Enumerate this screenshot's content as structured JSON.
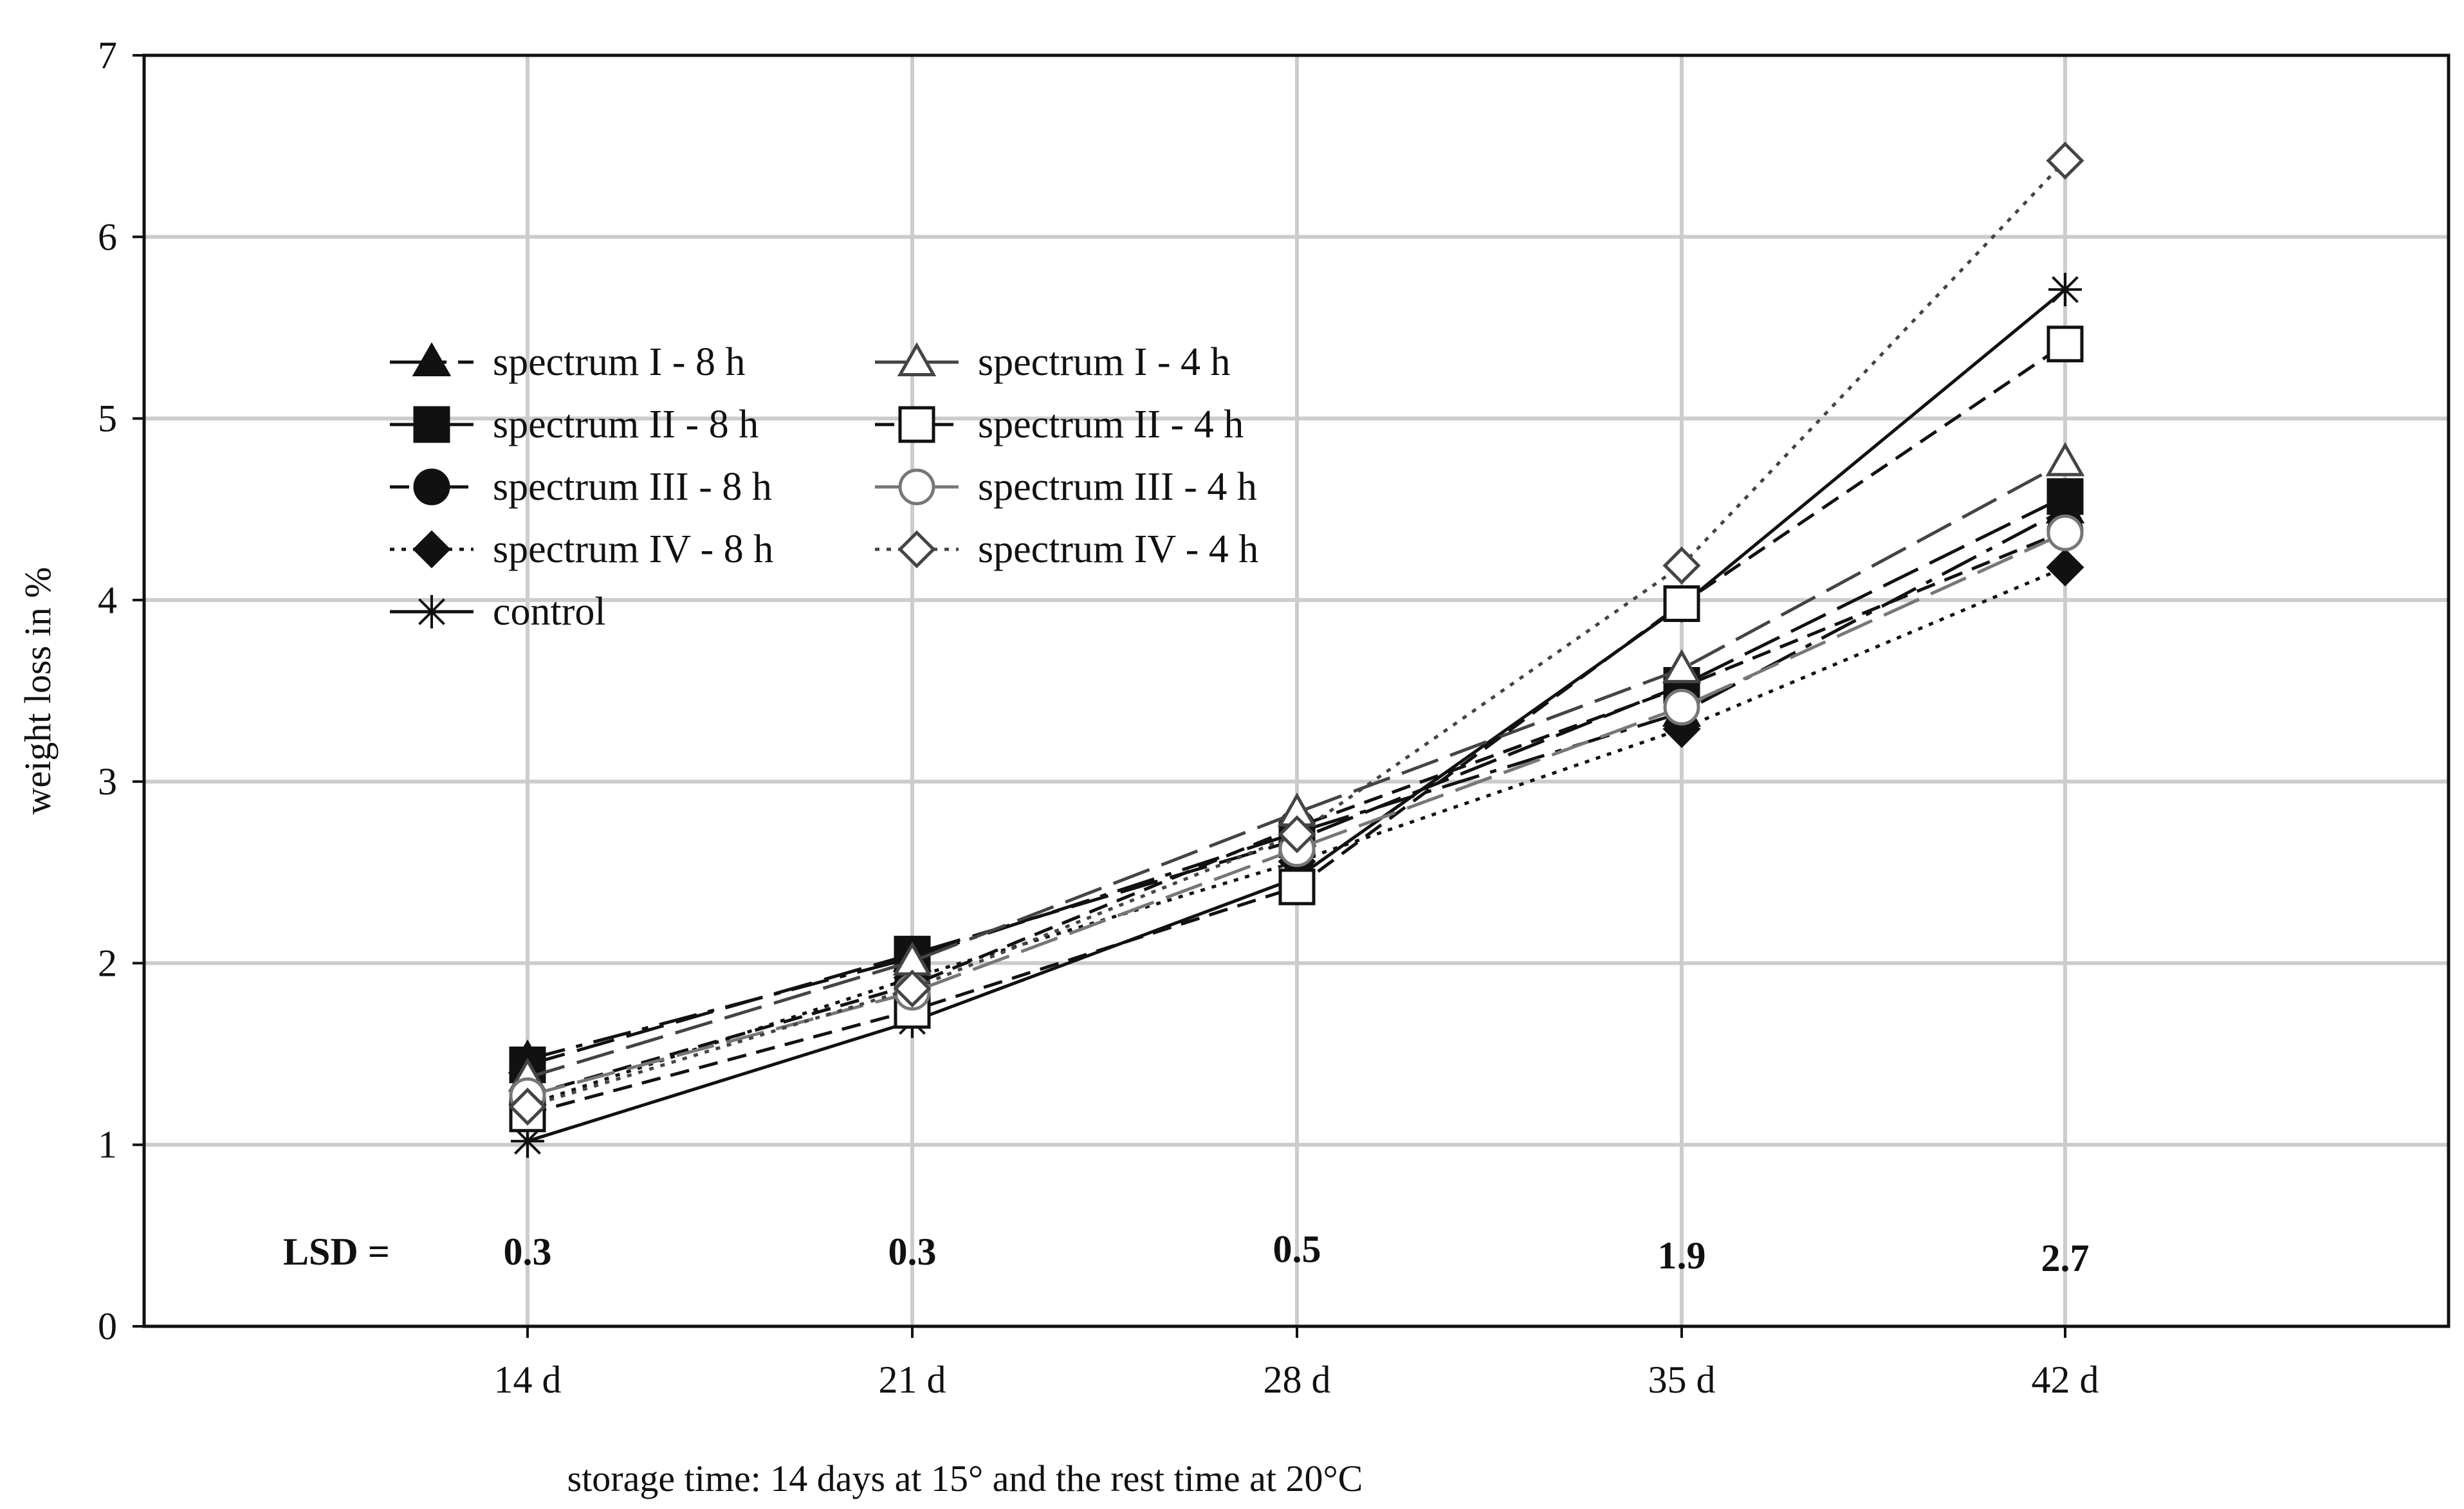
{
  "chart_data": {
    "type": "line",
    "title": "",
    "xlabel": "storage time: 14 days at 15° and the rest time at 20°C",
    "ylabel": "weight loss in %",
    "categories": [
      "14 d",
      "21 d",
      "28 d",
      "35 d",
      "42 d"
    ],
    "ylim": [
      0,
      7
    ],
    "yticks": [
      0,
      1,
      2,
      3,
      4,
      5,
      6,
      7
    ],
    "grid": true,
    "legend_position": "top-left",
    "series": [
      {
        "name": "spectrum I - 8 h",
        "values": [
          1.47,
          2.03,
          2.72,
          3.38,
          4.5
        ],
        "marker": "triangle-filled",
        "dash": "long-dash-dot",
        "color": "#111111"
      },
      {
        "name": "spectrum II - 8 h",
        "values": [
          1.44,
          2.05,
          2.68,
          3.53,
          4.57
        ],
        "marker": "square-filled",
        "dash": "long-dash",
        "color": "#111111"
      },
      {
        "name": "spectrum III - 8 h",
        "values": [
          1.27,
          1.88,
          2.75,
          3.52,
          4.38
        ],
        "marker": "circle-filled",
        "dash": "dash",
        "color": "#111111"
      },
      {
        "name": "spectrum IV - 8 h",
        "values": [
          1.22,
          1.92,
          2.56,
          3.29,
          4.18
        ],
        "marker": "diamond-filled",
        "dash": "dot",
        "color": "#111111"
      },
      {
        "name": "control",
        "values": [
          1.02,
          1.68,
          2.47,
          3.97,
          5.71
        ],
        "marker": "asterisk",
        "dash": "solid",
        "color": "#111111"
      },
      {
        "name": "spectrum I - 4 h",
        "values": [
          1.37,
          2.01,
          2.83,
          3.62,
          4.76
        ],
        "marker": "triangle-open",
        "dash": "long-dash",
        "color": "#444444"
      },
      {
        "name": "spectrum II - 4 h",
        "values": [
          1.17,
          1.74,
          2.42,
          3.98,
          5.41
        ],
        "marker": "square-open",
        "dash": "dash",
        "color": "#111111"
      },
      {
        "name": "spectrum III - 4 h",
        "values": [
          1.27,
          1.84,
          2.63,
          3.41,
          4.37
        ],
        "marker": "circle-open",
        "dash": "long-dash",
        "color": "#777777"
      },
      {
        "name": "spectrum IV - 4 h",
        "values": [
          1.21,
          1.86,
          2.71,
          4.19,
          6.42
        ],
        "marker": "diamond-open",
        "dash": "dot",
        "color": "#444444"
      }
    ],
    "annotations": {
      "lsd_label": "LSD =",
      "lsd_values": [
        "0.3",
        "0.3",
        "0.5",
        "1.9",
        "2.7"
      ]
    }
  }
}
